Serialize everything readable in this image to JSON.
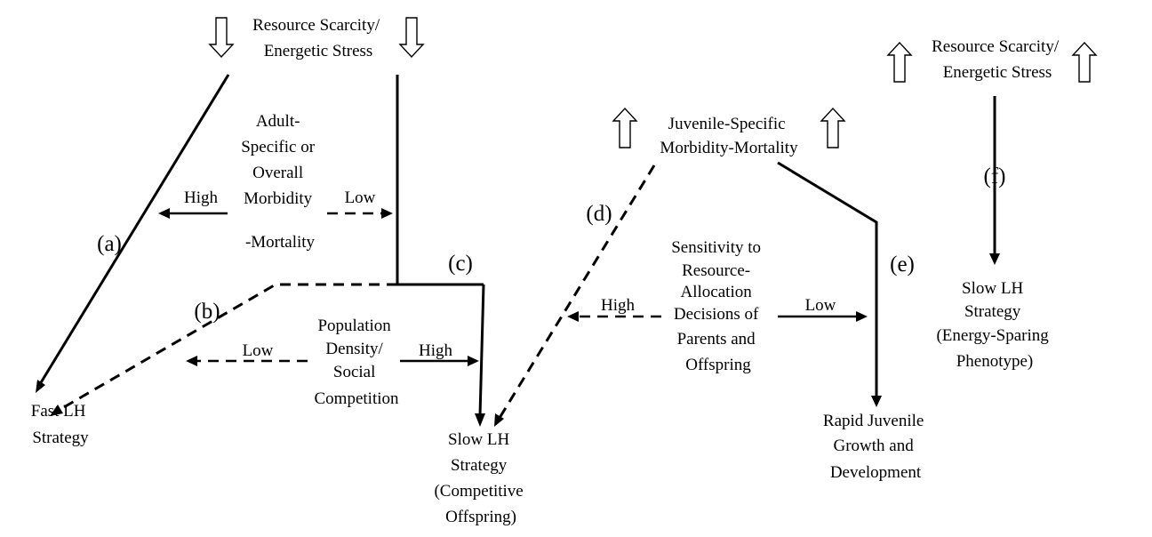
{
  "labels": {
    "scarcity_left": [
      "Resource Scarcity/",
      "Energetic Stress"
    ],
    "scarcity_right": [
      "Resource Scarcity/",
      "Energetic Stress"
    ],
    "adult_mortality": [
      "Adult-",
      "Specific or",
      "Overall",
      "Morbidity",
      "-Mortality"
    ],
    "population_density": [
      "Population",
      "Density/",
      "Social",
      "Competition"
    ],
    "juvenile_mortality": [
      "Juvenile-Specific",
      "Morbidity-Mortality"
    ],
    "sensitivity": [
      "Sensitivity to",
      "Resource-",
      "Allocation",
      "Decisions of",
      "Parents and",
      "Offspring"
    ],
    "fast_lh": [
      "Fast LH",
      "Strategy"
    ],
    "slow_competitive": [
      "Slow LH",
      "Strategy",
      "(Competitive",
      "Offspring)"
    ],
    "rapid_growth": [
      "Rapid Juvenile",
      "Growth and",
      "Development"
    ],
    "slow_energy": [
      "Slow LH",
      "Strategy",
      "(Energy-Sparing",
      "Phenotype)"
    ]
  },
  "levels": {
    "adult_high": "High",
    "adult_low": "Low",
    "density_low": "Low",
    "density_high": "High",
    "sensitivity_high": "High",
    "sensitivity_low": "Low"
  },
  "paths": {
    "a": "(a)",
    "b": "(b)",
    "c": "(c)",
    "d": "(d)",
    "e": "(e)",
    "f": "(f)"
  },
  "stress_direction": {
    "left_cluster": "decrease",
    "middle_juvenile": "increase",
    "right_cluster": "increase"
  }
}
